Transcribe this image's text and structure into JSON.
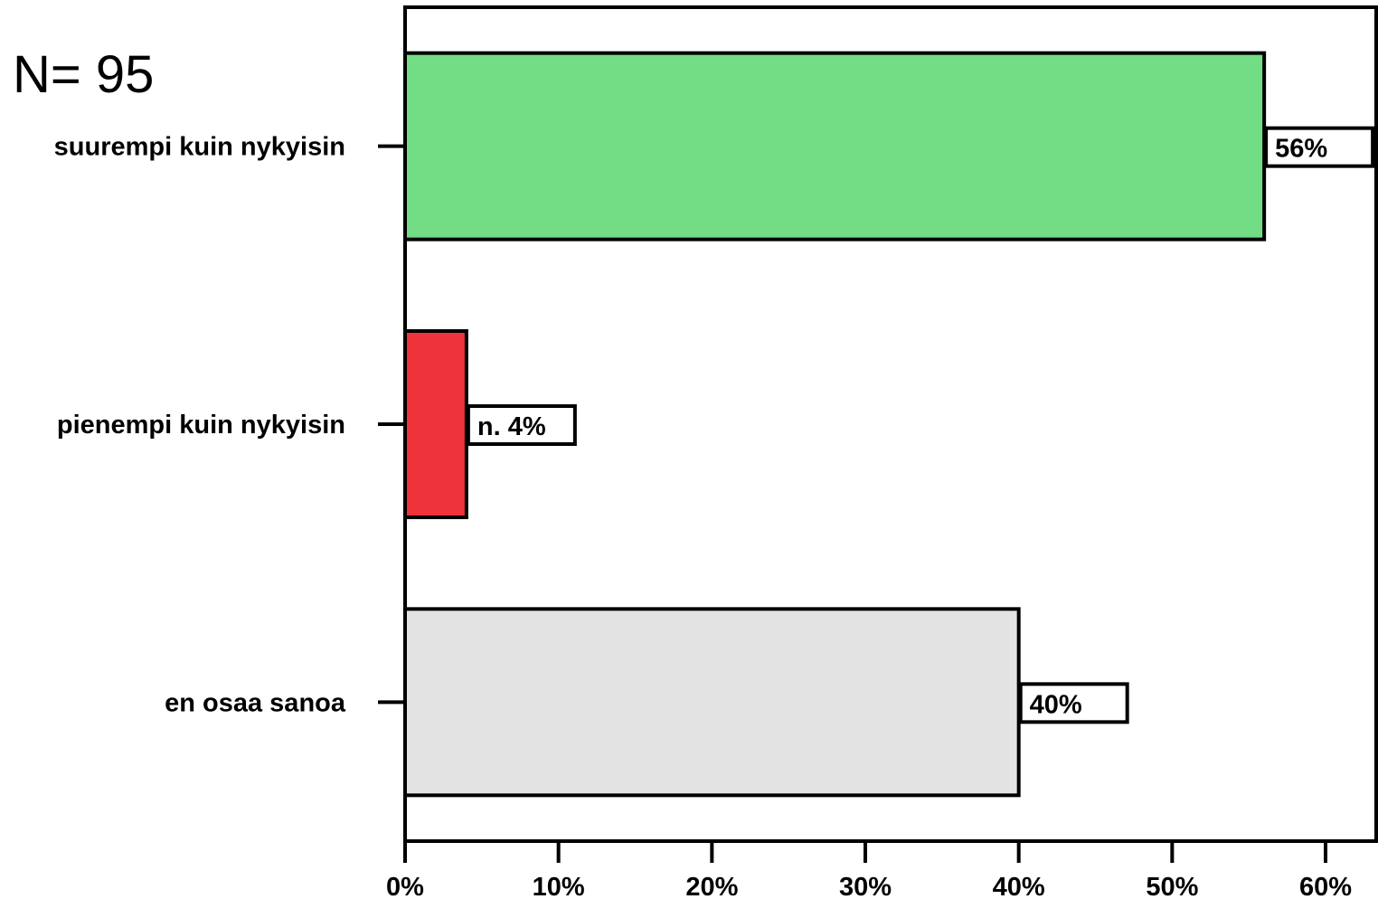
{
  "annotation": "N= 95",
  "chart_data": {
    "type": "bar",
    "orientation": "horizontal",
    "categories": [
      "suurempi kuin nykyisin",
      "pienempi kuin nykyisin",
      "en osaa sanoa"
    ],
    "values": [
      56,
      4,
      40
    ],
    "data_labels": [
      "56%",
      "n. 4%",
      "40%"
    ],
    "colors": [
      "#72dd85",
      "#ef333a",
      "#e3e3e3"
    ],
    "xlim": [
      0,
      63.3
    ],
    "xticks": [
      0,
      10,
      20,
      30,
      40,
      50,
      60
    ],
    "xtick_labels": [
      "0%",
      "10%",
      "20%",
      "30%",
      "40%",
      "50%",
      "60%"
    ],
    "grid": false,
    "legend": "none"
  }
}
